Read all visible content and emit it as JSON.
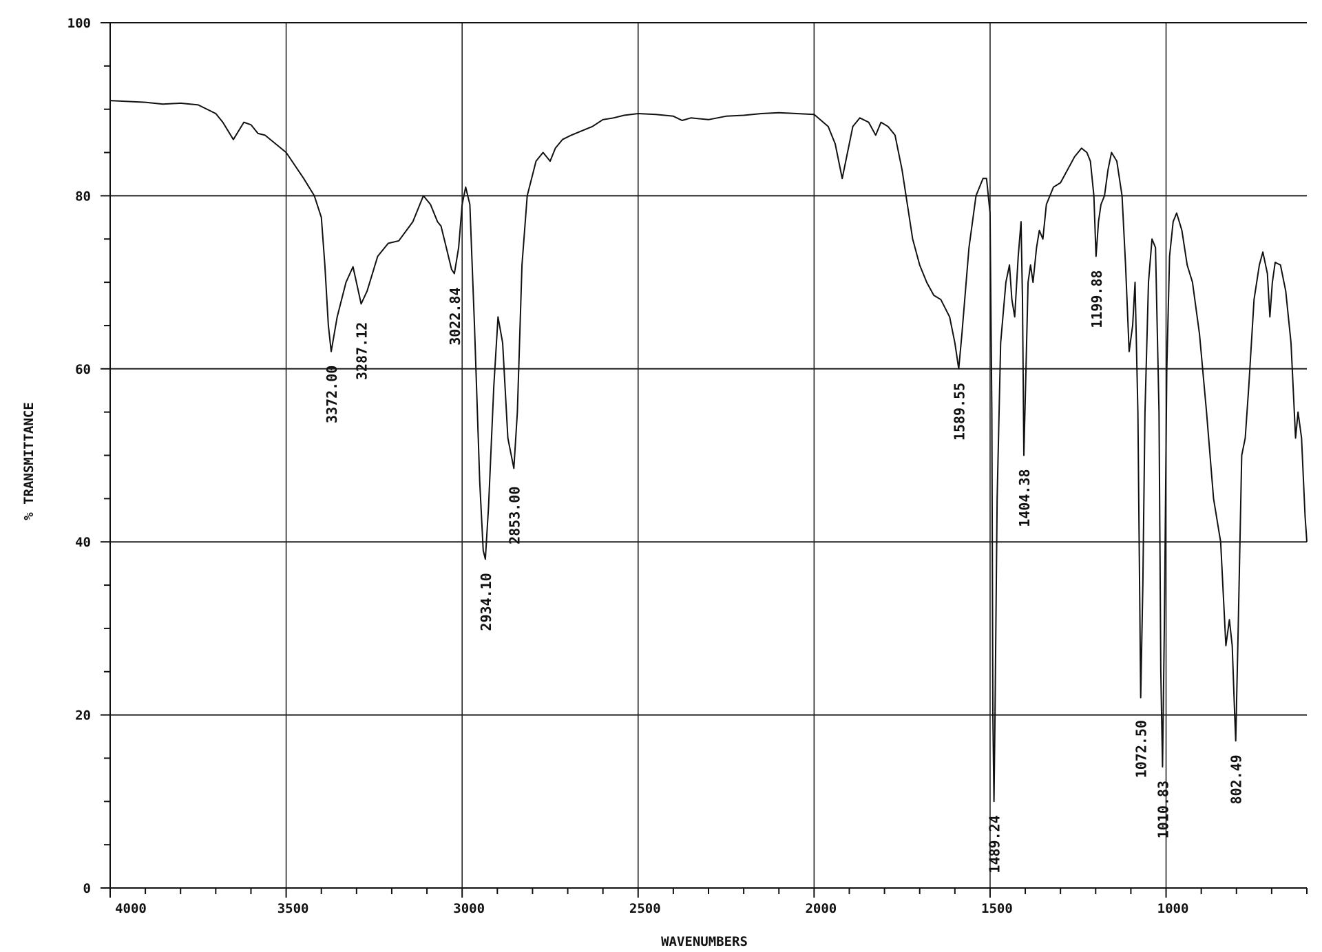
{
  "chart_data": {
    "type": "line",
    "xlabel": "WAVENUMBERS",
    "ylabel": "% TRANSMITTANCE",
    "xlim": [
      4000,
      600
    ],
    "ylim": [
      0,
      100
    ],
    "x_reversed": true,
    "grid": true,
    "x_ticks": [
      4000,
      3500,
      3000,
      2500,
      2000,
      1500,
      1000
    ],
    "x_tick_labels": [
      "4000",
      "3500",
      "3000",
      "2500",
      "2000",
      "1500",
      "1000"
    ],
    "y_ticks": [
      0,
      20,
      40,
      60,
      80,
      100
    ],
    "y_tick_labels": [
      "0",
      "20",
      "40",
      "60",
      "80",
      "100"
    ],
    "peak_labels": [
      {
        "label": "3372.00",
        "x": 3372,
        "y": 62
      },
      {
        "label": "3287.12",
        "x": 3287,
        "y": 67
      },
      {
        "label": "3022.84",
        "x": 3022,
        "y": 71
      },
      {
        "label": "2934.10",
        "x": 2934,
        "y": 38
      },
      {
        "label": "2853.00",
        "x": 2853,
        "y": 48
      },
      {
        "label": "1589.55",
        "x": 1589,
        "y": 60
      },
      {
        "label": "1489.24",
        "x": 1489,
        "y": 10
      },
      {
        "label": "1404.38",
        "x": 1404,
        "y": 50
      },
      {
        "label": "1199.88",
        "x": 1199,
        "y": 73
      },
      {
        "label": "1072.50",
        "x": 1072,
        "y": 21
      },
      {
        "label": "1010.83",
        "x": 1010,
        "y": 14
      },
      {
        "label": "802.49",
        "x": 802,
        "y": 17
      }
    ],
    "series": [
      {
        "points": [
          [
            4000,
            91
          ],
          [
            3900,
            90.8
          ],
          [
            3850,
            90.6
          ],
          [
            3800,
            90.7
          ],
          [
            3750,
            90.5
          ],
          [
            3700,
            89.5
          ],
          [
            3680,
            88.5
          ],
          [
            3650,
            86.5
          ],
          [
            3620,
            88.5
          ],
          [
            3600,
            88.2
          ],
          [
            3580,
            87.2
          ],
          [
            3560,
            87
          ],
          [
            3500,
            85
          ],
          [
            3450,
            82
          ],
          [
            3420,
            80
          ],
          [
            3400,
            77.5
          ],
          [
            3390,
            72
          ],
          [
            3380,
            65
          ],
          [
            3372,
            62
          ],
          [
            3355,
            66
          ],
          [
            3330,
            70
          ],
          [
            3310,
            71.8
          ],
          [
            3295,
            69
          ],
          [
            3287,
            67.5
          ],
          [
            3270,
            69
          ],
          [
            3240,
            73
          ],
          [
            3210,
            74.5
          ],
          [
            3180,
            74.8
          ],
          [
            3140,
            77
          ],
          [
            3110,
            80
          ],
          [
            3090,
            79
          ],
          [
            3070,
            77
          ],
          [
            3060,
            76.5
          ],
          [
            3045,
            74
          ],
          [
            3030,
            71.5
          ],
          [
            3022,
            71
          ],
          [
            3010,
            74
          ],
          [
            3000,
            79
          ],
          [
            2990,
            81
          ],
          [
            2978,
            79
          ],
          [
            2965,
            65
          ],
          [
            2950,
            47
          ],
          [
            2940,
            39
          ],
          [
            2934,
            38
          ],
          [
            2925,
            44
          ],
          [
            2910,
            58
          ],
          [
            2898,
            66
          ],
          [
            2885,
            63
          ],
          [
            2870,
            52
          ],
          [
            2853,
            48.5
          ],
          [
            2843,
            55
          ],
          [
            2830,
            72
          ],
          [
            2815,
            80
          ],
          [
            2790,
            84
          ],
          [
            2770,
            85
          ],
          [
            2750,
            84
          ],
          [
            2735,
            85.5
          ],
          [
            2715,
            86.5
          ],
          [
            2690,
            87
          ],
          [
            2660,
            87.5
          ],
          [
            2630,
            88
          ],
          [
            2600,
            88.8
          ],
          [
            2570,
            89
          ],
          [
            2540,
            89.3
          ],
          [
            2500,
            89.5
          ],
          [
            2450,
            89.4
          ],
          [
            2400,
            89.2
          ],
          [
            2375,
            88.7
          ],
          [
            2350,
            89
          ],
          [
            2300,
            88.8
          ],
          [
            2250,
            89.2
          ],
          [
            2200,
            89.3
          ],
          [
            2150,
            89.5
          ],
          [
            2100,
            89.6
          ],
          [
            2050,
            89.5
          ],
          [
            2000,
            89.4
          ],
          [
            1960,
            88
          ],
          [
            1940,
            86
          ],
          [
            1920,
            82
          ],
          [
            1905,
            85
          ],
          [
            1890,
            88
          ],
          [
            1870,
            89
          ],
          [
            1845,
            88.5
          ],
          [
            1825,
            87
          ],
          [
            1810,
            88.5
          ],
          [
            1790,
            88
          ],
          [
            1770,
            87
          ],
          [
            1750,
            83
          ],
          [
            1735,
            79
          ],
          [
            1720,
            75
          ],
          [
            1700,
            72
          ],
          [
            1680,
            70
          ],
          [
            1660,
            68.5
          ],
          [
            1640,
            68
          ],
          [
            1615,
            66
          ],
          [
            1600,
            63
          ],
          [
            1589,
            60
          ],
          [
            1580,
            64
          ],
          [
            1560,
            74
          ],
          [
            1540,
            80
          ],
          [
            1520,
            82
          ],
          [
            1510,
            82
          ],
          [
            1500,
            78
          ],
          [
            1495,
            55
          ],
          [
            1492,
            20
          ],
          [
            1489,
            10
          ],
          [
            1486,
            20
          ],
          [
            1480,
            45
          ],
          [
            1470,
            63
          ],
          [
            1455,
            70
          ],
          [
            1445,
            72
          ],
          [
            1438,
            68
          ],
          [
            1430,
            66
          ],
          [
            1420,
            73
          ],
          [
            1412,
            77
          ],
          [
            1408,
            68
          ],
          [
            1404,
            50
          ],
          [
            1398,
            60
          ],
          [
            1392,
            70
          ],
          [
            1385,
            72
          ],
          [
            1378,
            70
          ],
          [
            1368,
            74
          ],
          [
            1360,
            76
          ],
          [
            1350,
            75
          ],
          [
            1340,
            79
          ],
          [
            1320,
            81
          ],
          [
            1300,
            81.5
          ],
          [
            1280,
            83
          ],
          [
            1260,
            84.5
          ],
          [
            1240,
            85.5
          ],
          [
            1225,
            85
          ],
          [
            1215,
            84
          ],
          [
            1205,
            80
          ],
          [
            1199,
            73
          ],
          [
            1192,
            77
          ],
          [
            1185,
            79
          ],
          [
            1175,
            80
          ],
          [
            1165,
            83
          ],
          [
            1155,
            85
          ],
          [
            1140,
            84
          ],
          [
            1125,
            80
          ],
          [
            1115,
            72
          ],
          [
            1105,
            62
          ],
          [
            1095,
            65
          ],
          [
            1088,
            70
          ],
          [
            1080,
            55
          ],
          [
            1072,
            22
          ],
          [
            1066,
            35
          ],
          [
            1060,
            55
          ],
          [
            1050,
            70
          ],
          [
            1040,
            75
          ],
          [
            1030,
            74
          ],
          [
            1020,
            55
          ],
          [
            1015,
            25
          ],
          [
            1010,
            14
          ],
          [
            1005,
            30
          ],
          [
            998,
            60
          ],
          [
            990,
            73
          ],
          [
            980,
            77
          ],
          [
            970,
            78
          ],
          [
            955,
            76
          ],
          [
            940,
            72
          ],
          [
            925,
            70
          ],
          [
            905,
            64
          ],
          [
            885,
            55
          ],
          [
            865,
            45
          ],
          [
            845,
            40
          ],
          [
            830,
            28
          ],
          [
            820,
            31
          ],
          [
            812,
            28
          ],
          [
            805,
            20
          ],
          [
            802,
            17
          ],
          [
            795,
            30
          ],
          [
            785,
            50
          ],
          [
            775,
            52
          ],
          [
            765,
            58
          ],
          [
            750,
            68
          ],
          [
            735,
            72
          ],
          [
            725,
            73.5
          ],
          [
            712,
            71
          ],
          [
            705,
            66
          ],
          [
            698,
            70
          ],
          [
            690,
            72.3
          ],
          [
            675,
            72
          ],
          [
            660,
            69
          ],
          [
            645,
            63
          ],
          [
            632,
            52
          ],
          [
            625,
            55
          ],
          [
            615,
            52
          ],
          [
            605,
            43
          ],
          [
            600,
            40
          ]
        ]
      }
    ]
  }
}
